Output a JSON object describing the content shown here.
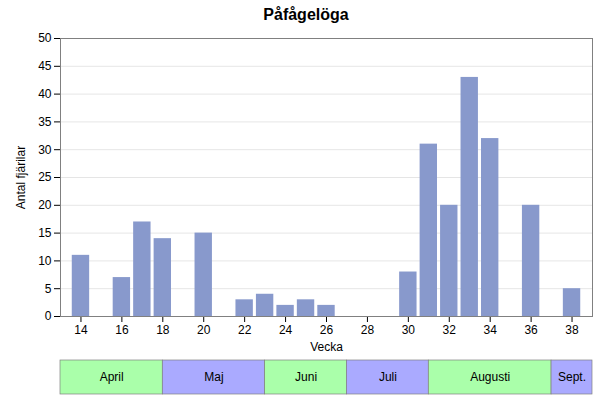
{
  "chart_data": {
    "type": "bar",
    "title": "Påfågelöga",
    "xlabel": "Vecka",
    "ylabel": "Antal fjärilar",
    "x": [
      14,
      16,
      17,
      18,
      20,
      22,
      23,
      24,
      25,
      26,
      30,
      31,
      32,
      33,
      34,
      36,
      38
    ],
    "values": [
      11,
      7,
      17,
      14,
      15,
      3,
      4,
      2,
      3,
      2,
      8,
      31,
      20,
      43,
      32,
      20,
      5
    ],
    "color": "#8899cc",
    "xlim": [
      13,
      39
    ],
    "ylim": [
      0,
      50
    ],
    "xticks": [
      14,
      16,
      18,
      20,
      22,
      24,
      26,
      28,
      30,
      32,
      34,
      36,
      38
    ],
    "yticks": [
      0,
      5,
      10,
      15,
      20,
      25,
      30,
      35,
      40,
      45,
      50
    ],
    "grid": true,
    "month_bands": [
      {
        "label": "April",
        "x_start": 13,
        "x_end": 18,
        "color": "#aaffaa"
      },
      {
        "label": "Maj",
        "x_start": 18,
        "x_end": 23,
        "color": "#aaaaff"
      },
      {
        "label": "Juni",
        "x_start": 23,
        "x_end": 27,
        "color": "#aaffaa"
      },
      {
        "label": "Juli",
        "x_start": 27,
        "x_end": 31,
        "color": "#aaaaff"
      },
      {
        "label": "Augusti",
        "x_start": 31,
        "x_end": 37,
        "color": "#aaffaa"
      },
      {
        "label": "Sept.",
        "x_start": 37,
        "x_end": 39,
        "color": "#aaaaff"
      }
    ]
  }
}
